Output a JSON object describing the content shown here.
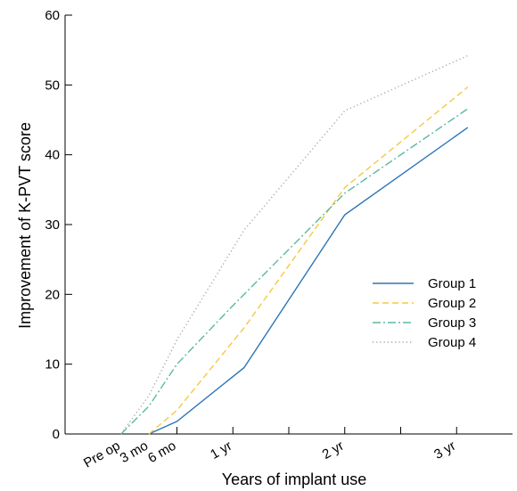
{
  "chart_data": {
    "type": "line",
    "xlabel": "Years of implant use",
    "ylabel": "Improvement of K-PVT score",
    "ylim": [
      0,
      60
    ],
    "yticks": [
      0,
      10,
      20,
      30,
      40,
      50,
      60
    ],
    "xlim": [
      -0.5,
      3.5
    ],
    "xtick_labels": [
      {
        "label": "Pre op",
        "x": 0
      },
      {
        "label": "3 mo",
        "x": 0.25
      },
      {
        "label": "6 mo",
        "x": 0.5
      },
      {
        "label": "1 yr",
        "x": 1
      },
      {
        "label": "2 yr",
        "x": 2
      },
      {
        "label": "3 yr",
        "x": 3
      }
    ],
    "minor_xticks": [
      0.5,
      1,
      1.5,
      2,
      2.5,
      3
    ],
    "legend_position": "right-middle",
    "series": [
      {
        "name": "Group 1",
        "color": "#2e75b6",
        "dash": "solid",
        "points": [
          {
            "x": 0.25,
            "y": 0
          },
          {
            "x": 0.5,
            "y": 1.8
          },
          {
            "x": 1.1,
            "y": 9.5
          },
          {
            "x": 2.0,
            "y": 31.4
          },
          {
            "x": 3.1,
            "y": 43.9
          }
        ]
      },
      {
        "name": "Group 2",
        "color": "#f5c842",
        "dash": "dashed",
        "points": [
          {
            "x": 0.25,
            "y": 0
          },
          {
            "x": 0.5,
            "y": 3.4
          },
          {
            "x": 1.1,
            "y": 15.2
          },
          {
            "x": 2.0,
            "y": 35.3
          },
          {
            "x": 3.1,
            "y": 49.7
          }
        ]
      },
      {
        "name": "Group 3",
        "color": "#5bb8a6",
        "dash": "dashdot",
        "points": [
          {
            "x": 0.0,
            "y": 0
          },
          {
            "x": 0.25,
            "y": 4.0
          },
          {
            "x": 0.5,
            "y": 10.0
          },
          {
            "x": 1.0,
            "y": 18.4
          },
          {
            "x": 2.0,
            "y": 34.5
          },
          {
            "x": 3.1,
            "y": 46.6
          }
        ]
      },
      {
        "name": "Group 4",
        "color": "#a6a6a6",
        "dash": "dotted",
        "points": [
          {
            "x": 0.0,
            "y": 0
          },
          {
            "x": 0.25,
            "y": 5.5
          },
          {
            "x": 0.5,
            "y": 13.5
          },
          {
            "x": 1.1,
            "y": 29.2
          },
          {
            "x": 2.0,
            "y": 46.3
          },
          {
            "x": 3.1,
            "y": 54.2
          }
        ]
      }
    ]
  }
}
